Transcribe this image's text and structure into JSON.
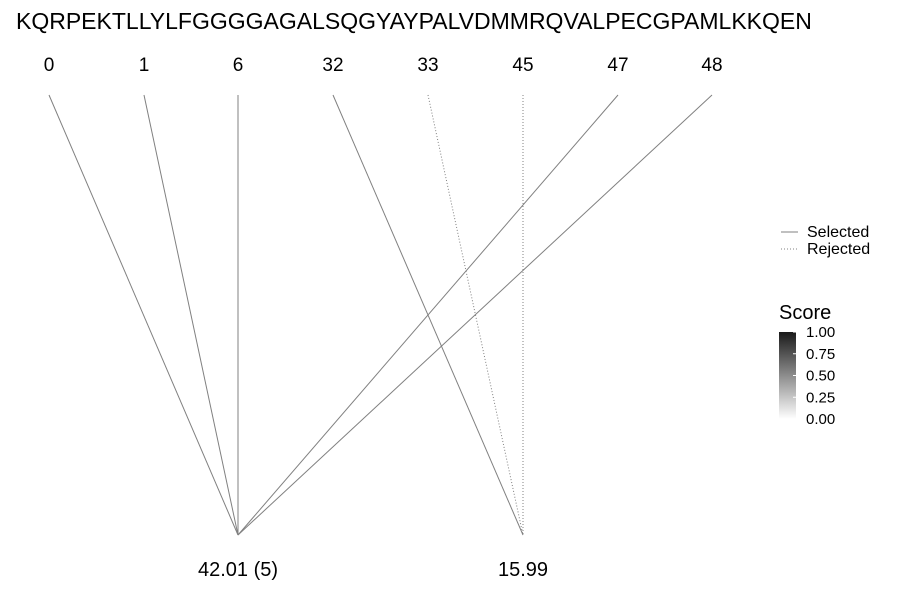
{
  "sequence": "KQRPEKTLLYLFGGGGAGALSQGYAYPALVDMMRQVALPECGPAMLKKQEN",
  "positions": [
    "0",
    "1",
    "6",
    "32",
    "33",
    "45",
    "47",
    "48"
  ],
  "nodes": [
    "42.01 (5)",
    "15.99"
  ],
  "edges": [
    {
      "from": "0",
      "to": "42.01 (5)",
      "status": "Selected"
    },
    {
      "from": "1",
      "to": "42.01 (5)",
      "status": "Selected"
    },
    {
      "from": "6",
      "to": "42.01 (5)",
      "status": "Selected"
    },
    {
      "from": "47",
      "to": "42.01 (5)",
      "status": "Selected"
    },
    {
      "from": "48",
      "to": "42.01 (5)",
      "status": "Selected"
    },
    {
      "from": "32",
      "to": "15.99",
      "status": "Selected"
    },
    {
      "from": "33",
      "to": "15.99",
      "status": "Rejected"
    },
    {
      "from": "45",
      "to": "15.99",
      "status": "Rejected"
    }
  ],
  "legend": {
    "line_type": {
      "selected_label": "Selected",
      "rejected_label": "Rejected"
    },
    "score": {
      "title": "Score",
      "ticks": [
        "1.00",
        "0.75",
        "0.50",
        "0.25",
        "0.00"
      ],
      "colors": {
        "high": "#1a1a1a",
        "low": "#ffffff"
      }
    }
  },
  "colors": {
    "edge": "#808080",
    "text": "#000000"
  }
}
